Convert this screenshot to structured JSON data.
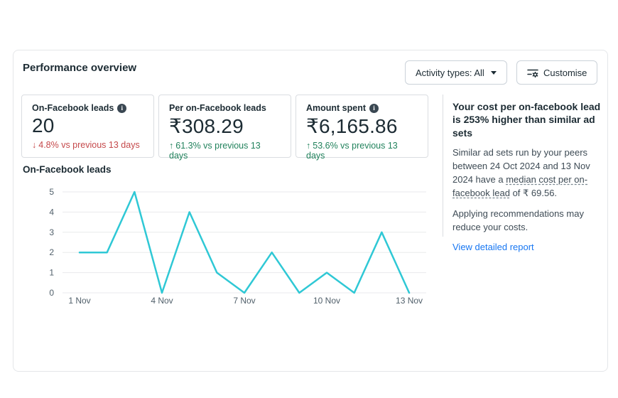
{
  "page": {
    "title": "Performance overview"
  },
  "toolbar": {
    "activity_types_label": "Activity types: All",
    "customise_label": "Customise"
  },
  "metrics": [
    {
      "label": "On-Facebook leads",
      "info": true,
      "value": "20",
      "arrow": "↓",
      "delta": "4.8% vs previous 13 days",
      "trend": "negative"
    },
    {
      "label": "Per on-Facebook leads",
      "info": false,
      "value": "₹308.29",
      "arrow": "↑",
      "delta": "61.3% vs previous 13 days",
      "trend": "positive"
    },
    {
      "label": "Amount spent",
      "info": true,
      "value": "₹6,165.86",
      "arrow": "↑",
      "delta": "53.6% vs previous 13 days",
      "trend": "positive"
    }
  ],
  "chart_data": {
    "type": "line",
    "title": "On-Facebook leads",
    "x": [
      "1 Nov",
      "2 Nov",
      "3 Nov",
      "4 Nov",
      "5 Nov",
      "6 Nov",
      "7 Nov",
      "8 Nov",
      "9 Nov",
      "10 Nov",
      "11 Nov",
      "12 Nov",
      "13 Nov"
    ],
    "values": [
      2,
      2,
      5,
      0,
      4,
      1,
      0,
      2,
      0,
      1,
      0,
      3,
      0
    ],
    "x_tick_labels": [
      "1 Nov",
      "4 Nov",
      "7 Nov",
      "10 Nov",
      "13 Nov"
    ],
    "x_tick_indices": [
      0,
      3,
      6,
      9,
      12
    ],
    "y_ticks": [
      0,
      1,
      2,
      3,
      4,
      5
    ],
    "ylim": [
      0,
      5
    ],
    "xlabel": "",
    "ylabel": "",
    "grid": true,
    "legend": false,
    "line_color": "#2FC8D5"
  },
  "insight": {
    "heading": "Your cost per on-facebook lead is 253% higher than similar ad sets",
    "p1_before": "Similar ad sets run by your peers between 24 Oct 2024 and 13 Nov 2024 have a ",
    "p1_term": "median cost per on-facebook lead",
    "p1_after": " of ₹ 69.56.",
    "p2": "Applying recommendations may reduce your costs.",
    "link_label": "View detailed report"
  },
  "colors": {
    "accent_teal": "#2FC8D5",
    "negative": "#C5494B",
    "positive": "#21825C",
    "link_blue": "#1877F2",
    "grid": "#E9EAEC"
  }
}
